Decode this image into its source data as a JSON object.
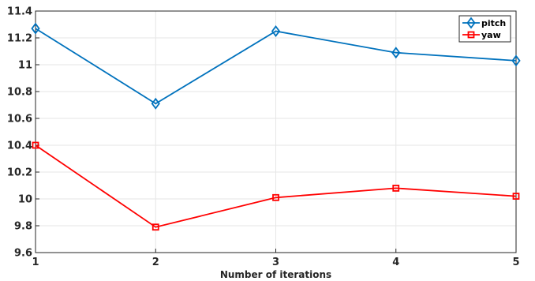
{
  "chart_data": {
    "type": "line",
    "xlabel": "Number of iterations",
    "ylabel": "",
    "x": [
      1,
      2,
      3,
      4,
      5
    ],
    "xlim": [
      1,
      5
    ],
    "ylim": [
      9.6,
      11.4
    ],
    "xticks": [
      "1",
      "2",
      "3",
      "4",
      "5"
    ],
    "yticks": [
      "9.6",
      "9.8",
      "10",
      "10.2",
      "10.4",
      "10.6",
      "10.8",
      "11",
      "11.2",
      "11.4"
    ],
    "grid": true,
    "legend_position": "top-right",
    "series": [
      {
        "name": "pitch",
        "color": "#0072BD",
        "marker": "diamond",
        "values": [
          11.27,
          10.71,
          11.25,
          11.09,
          11.03
        ]
      },
      {
        "name": "yaw",
        "color": "#FF0000",
        "marker": "square",
        "values": [
          10.4,
          9.79,
          10.01,
          10.08,
          10.02
        ]
      }
    ]
  }
}
